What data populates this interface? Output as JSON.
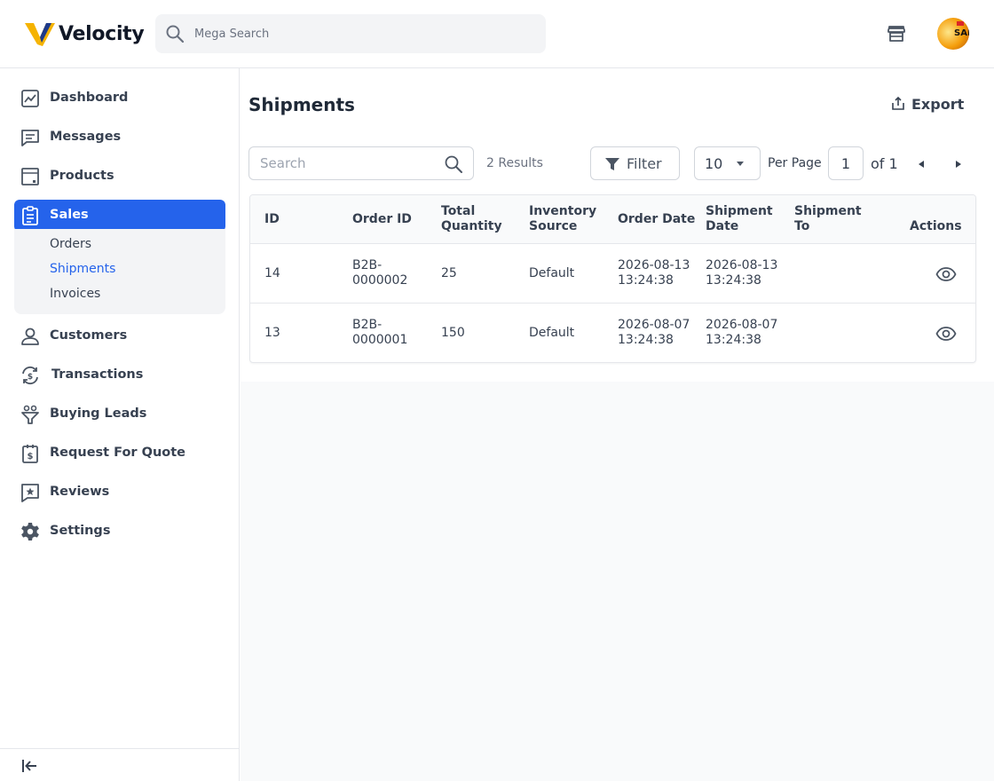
{
  "header": {
    "brand": "Velocity",
    "mega_search_placeholder": "Mega Search",
    "avatar_text": "SAI"
  },
  "sidebar": {
    "items": [
      {
        "label": "Dashboard",
        "icon": "dashboard-icon"
      },
      {
        "label": "Messages",
        "icon": "messages-icon"
      },
      {
        "label": "Products",
        "icon": "products-icon"
      },
      {
        "label": "Sales",
        "icon": "sales-icon",
        "active": true
      },
      {
        "label": "Customers",
        "icon": "customers-icon"
      },
      {
        "label": "Transactions",
        "icon": "transactions-icon"
      },
      {
        "label": "Buying Leads",
        "icon": "buying-leads-icon"
      },
      {
        "label": "Request For Quote",
        "icon": "request-quote-icon"
      },
      {
        "label": "Reviews",
        "icon": "reviews-icon"
      },
      {
        "label": "Settings",
        "icon": "settings-icon"
      }
    ],
    "sales_submenu": [
      {
        "label": "Orders"
      },
      {
        "label": "Shipments",
        "active": true
      },
      {
        "label": "Invoices"
      }
    ]
  },
  "main": {
    "title": "Shipments",
    "export_label": "Export",
    "search_placeholder": "Search",
    "results_text": "2 Results",
    "filter_label": "Filter",
    "per_page_value": "10",
    "per_page_label": "Per Page",
    "page_value": "1",
    "of_pages": "of 1"
  },
  "table": {
    "columns": [
      {
        "line1": "ID",
        "line2": ""
      },
      {
        "line1": "Order ID",
        "line2": ""
      },
      {
        "line1": "Total",
        "line2": "Quantity"
      },
      {
        "line1": "Inventory",
        "line2": "Source"
      },
      {
        "line1": "Order Date",
        "line2": ""
      },
      {
        "line1": "Shipment",
        "line2": "Date"
      },
      {
        "line1": "Shipment",
        "line2": "To"
      },
      {
        "line1": "Actions",
        "line2": ""
      }
    ],
    "rows": [
      {
        "id": "14",
        "order_id_1": "B2B-",
        "order_id_2": "0000002",
        "quantity": "25",
        "source": "Default",
        "order_date_1": "2026-08-13",
        "order_date_2": "13:24:38",
        "ship_date_1": "2026-08-13",
        "ship_date_2": "13:24:38",
        "ship_to": ""
      },
      {
        "id": "13",
        "order_id_1": "B2B-",
        "order_id_2": "0000001",
        "quantity": "150",
        "source": "Default",
        "order_date_1": "2026-08-07",
        "order_date_2": "13:24:38",
        "ship_date_1": "2026-08-07",
        "ship_date_2": "13:24:38",
        "ship_to": ""
      }
    ]
  },
  "colors": {
    "accent": "#2563eb",
    "logo_yellow": "#f5b301",
    "logo_blue": "#1e40af"
  }
}
